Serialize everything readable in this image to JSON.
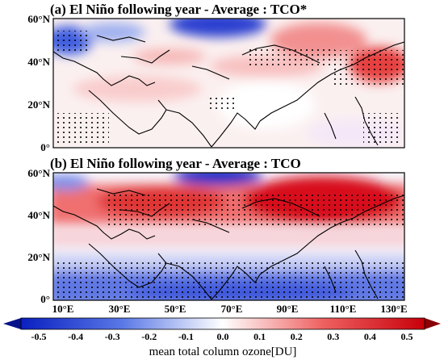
{
  "panels": [
    {
      "id": "a",
      "title": "(a)  El Niño following year - Average : TCO*",
      "y_ticks": [
        "60°N",
        "40°N",
        "20°N",
        "0°"
      ]
    },
    {
      "id": "b",
      "title": "(b)  El Niño following year - Average : TCO",
      "y_ticks": [
        "60°N",
        "40°N",
        "20°N",
        "0°"
      ],
      "x_ticks": [
        "10°E",
        "30°E",
        "50°E",
        "70°E",
        "90°E",
        "110°E",
        "130°E"
      ]
    }
  ],
  "colorbar": {
    "label": "mean total column ozone[DU]",
    "ticks": [
      "-0.5",
      "-0.4",
      "-0.3",
      "-0.2",
      "-0.1",
      "0.0",
      "0.1",
      "0.2",
      "0.3",
      "0.4",
      "0.5"
    ],
    "min": -0.5,
    "max": 0.5,
    "colors": {
      "negative": "#0a1fc0",
      "neutral": "#ffffff",
      "positive": "#c8000a"
    }
  }
}
